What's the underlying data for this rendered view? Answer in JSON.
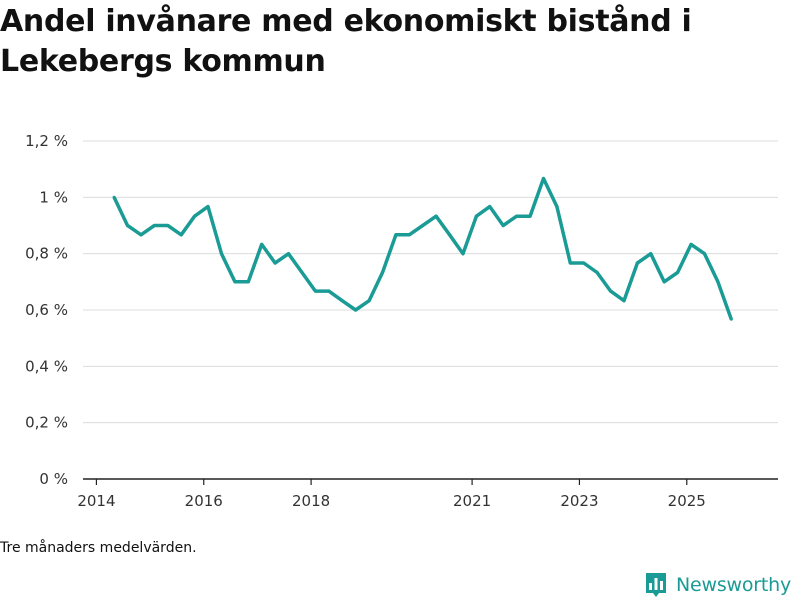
{
  "title": "Andel invånare med ekonomiskt bistånd i Lekebergs kommun",
  "footnote": "Tre månaders medelvärden.",
  "brand": {
    "name": "Newsworthy",
    "icon": "newsworthy-logo-icon"
  },
  "colors": {
    "line": "#1a9b95",
    "grid": "#dcdcdc",
    "axis": "#222222",
    "brand": "#1a9b95"
  },
  "chart_data": {
    "type": "line",
    "title": "Andel invånare med ekonomiskt bistånd i Lekebergs kommun",
    "xlabel": "",
    "ylabel": "",
    "grid": true,
    "xlim": [
      2013.75,
      2026.7
    ],
    "ylim": [
      0,
      1.2
    ],
    "yticks": [
      0,
      0.2,
      0.4,
      0.6,
      0.8,
      1.0,
      1.2
    ],
    "ytick_labels": [
      "0 %",
      "0,2 %",
      "0,4 %",
      "0,6 %",
      "0,8 %",
      "1 %",
      "1,2 %"
    ],
    "xticks": [
      2014,
      2016,
      2018,
      2021,
      2023,
      2025
    ],
    "xtick_labels": [
      "2014",
      "2016",
      "2018",
      "2021",
      "2023",
      "2025"
    ],
    "series": [
      {
        "name": "Andel invånare med ekonomiskt bistånd",
        "x": [
          2014.33,
          2014.58,
          2014.83,
          2015.08,
          2015.33,
          2015.58,
          2015.83,
          2016.08,
          2016.33,
          2016.58,
          2016.83,
          2017.08,
          2017.33,
          2017.58,
          2017.83,
          2018.08,
          2018.33,
          2018.58,
          2018.83,
          2019.08,
          2019.33,
          2019.58,
          2019.83,
          2020.08,
          2020.33,
          2020.58,
          2020.83,
          2021.08,
          2021.33,
          2021.58,
          2021.83,
          2022.08,
          2022.33,
          2022.58,
          2022.83,
          2023.08,
          2023.33,
          2023.58,
          2023.83,
          2024.08,
          2024.33,
          2024.58,
          2024.83,
          2025.08,
          2025.33,
          2025.58,
          2025.83
        ],
        "values": [
          1.0,
          0.9,
          0.867,
          0.9,
          0.9,
          0.867,
          0.933,
          0.967,
          0.8,
          0.7,
          0.7,
          0.833,
          0.767,
          0.8,
          0.733,
          0.667,
          0.667,
          0.633,
          0.6,
          0.633,
          0.733,
          0.867,
          0.867,
          0.9,
          0.933,
          0.867,
          0.8,
          0.933,
          0.967,
          0.9,
          0.933,
          0.933,
          1.067,
          0.967,
          0.767,
          0.767,
          0.733,
          0.667,
          0.633,
          0.767,
          0.8,
          0.7,
          0.733,
          0.833,
          0.8,
          0.7,
          0.567
        ]
      }
    ]
  }
}
